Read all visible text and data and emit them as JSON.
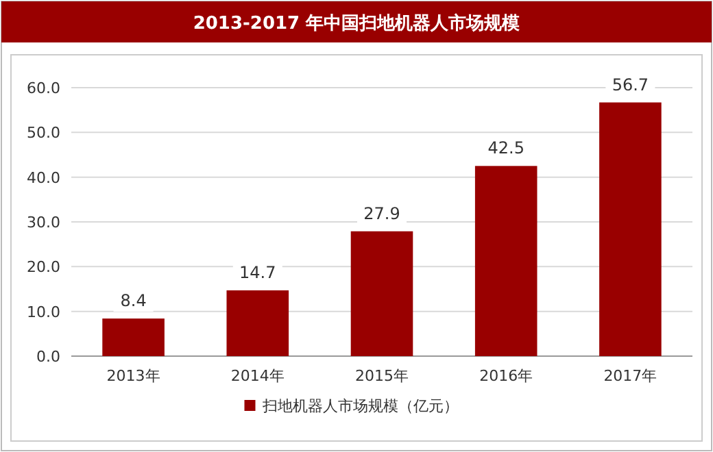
{
  "chart_data": {
    "type": "bar",
    "title": "2013-2017 年中国扫地机器人市场规模",
    "categories": [
      "2013年",
      "2014年",
      "2015年",
      "2016年",
      "2017年"
    ],
    "series": [
      {
        "name": "扫地机器人市场规模（亿元）",
        "color": "#990000",
        "values": [
          8.4,
          14.7,
          27.9,
          42.5,
          56.7
        ]
      }
    ],
    "ylim": [
      0,
      60
    ],
    "yticks": [
      {
        "value": 0,
        "label": "0.0"
      },
      {
        "value": 10,
        "label": "10.0"
      },
      {
        "value": 20,
        "label": "20.0"
      },
      {
        "value": 30,
        "label": "30.0"
      },
      {
        "value": 40,
        "label": "40.0"
      },
      {
        "value": 50,
        "label": "50.0"
      },
      {
        "value": 60,
        "label": "60.0"
      }
    ],
    "grid": "y",
    "legend": "bottom",
    "data_labels": true
  }
}
